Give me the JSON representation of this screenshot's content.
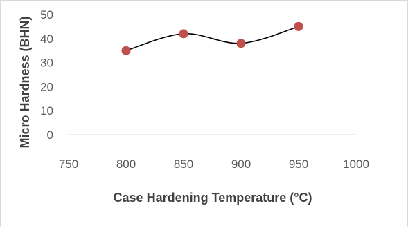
{
  "chart_data": {
    "type": "scatter",
    "title": "",
    "xlabel": "Case Hardening  Temperature (°C)",
    "ylabel": "Micro Hardness (BHN)",
    "xlim": [
      750,
      1000
    ],
    "ylim": [
      0,
      50
    ],
    "x_ticks": [
      750,
      800,
      850,
      900,
      950,
      1000
    ],
    "y_ticks": [
      0,
      10,
      20,
      30,
      40,
      50
    ],
    "grid": false,
    "legend": "none",
    "series": [
      {
        "x": [
          800,
          850,
          900,
          950
        ],
        "y": [
          35,
          42,
          38,
          45
        ],
        "marker_color": "#c0504d",
        "line_color": "#000000",
        "smoothed": true
      }
    ]
  }
}
